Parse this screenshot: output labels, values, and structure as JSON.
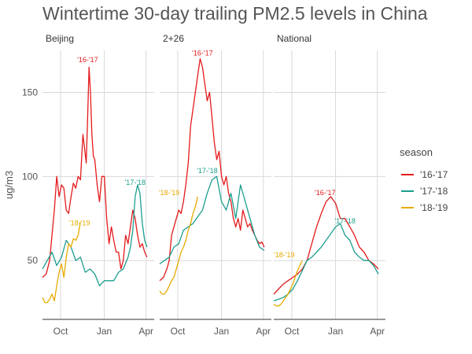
{
  "chart_data": {
    "type": "line",
    "title": "Wintertime 30-day trailing PM2.5 levels in China",
    "ylabel": "ug/m3",
    "xlabel": "",
    "x_ticks": [
      "Oct",
      "Jan",
      "Apr"
    ],
    "y_ticks": [
      50,
      100,
      150
    ],
    "ylim": [
      15,
      175
    ],
    "grid": true,
    "legend": {
      "title": "season",
      "placement": "right",
      "entries": [
        {
          "label": "'16-'17",
          "color": "#e41a1c"
        },
        {
          "label": "'17-'18",
          "color": "#1b9e8e"
        },
        {
          "label": "'18-'19",
          "color": "#e6ab02"
        }
      ]
    },
    "x_unit": "days since Sep 1",
    "panels": [
      {
        "name": "Beijing",
        "series": [
          {
            "name": "'16-'17",
            "color": "#e41a1c",
            "x": [
              0,
              8,
              15,
              20,
              25,
              30,
              35,
              40,
              45,
              50,
              55,
              60,
              65,
              70,
              75,
              80,
              85,
              88,
              92,
              95,
              98,
              101,
              104,
              107,
              110,
              115,
              120,
              125,
              130,
              135,
              140,
              145,
              150,
              155,
              160,
              165,
              170,
              175,
              180,
              185,
              190,
              195,
              200,
              205,
              210,
              215,
              220
            ],
            "y": [
              40,
              42,
              50,
              65,
              80,
              100,
              88,
              95,
              93,
              80,
              78,
              88,
              96,
              93,
              100,
              98,
              125,
              118,
              108,
              135,
              165,
              150,
              125,
              112,
              110,
              95,
              85,
              100,
              100,
              75,
              60,
              70,
              62,
              55,
              55,
              45,
              50,
              65,
              60,
              70,
              80,
              75,
              65,
              58,
              60,
              55,
              52
            ]
          },
          {
            "name": "'17-'18",
            "color": "#1b9e8e",
            "x": [
              0,
              10,
              20,
              30,
              40,
              50,
              60,
              70,
              80,
              90,
              100,
              110,
              120,
              130,
              140,
              150,
              160,
              170,
              180,
              185,
              190,
              195,
              200,
              205,
              210,
              215,
              220
            ],
            "y": [
              45,
              50,
              55,
              47,
              52,
              62,
              58,
              50,
              52,
              43,
              45,
              42,
              35,
              38,
              38,
              38,
              43,
              45,
              52,
              58,
              68,
              88,
              95,
              90,
              72,
              62,
              58
            ]
          },
          {
            "name": "'18-'19",
            "color": "#e6ab02",
            "x": [
              0,
              5,
              10,
              15,
              20,
              25,
              30,
              35,
              40,
              45,
              50,
              55,
              60,
              65,
              70,
              75,
              80
            ],
            "y": [
              28,
              25,
              25,
              27,
              30,
              26,
              35,
              43,
              48,
              40,
              52,
              60,
              58,
              63,
              62,
              65,
              73
            ]
          }
        ],
        "annotations": [
          {
            "text": "'16-'17",
            "x": 95,
            "y": 168,
            "color": "#e41a1c"
          },
          {
            "text": "'17-'18",
            "x": 195,
            "y": 95,
            "color": "#1b9e8e"
          },
          {
            "text": "'18-'19",
            "x": 78,
            "y": 71,
            "color": "#e6ab02"
          }
        ]
      },
      {
        "name": "2+26",
        "series": [
          {
            "name": "'16-'17",
            "color": "#e41a1c",
            "x": [
              0,
              8,
              15,
              20,
              25,
              30,
              35,
              40,
              45,
              50,
              55,
              60,
              65,
              70,
              75,
              80,
              85,
              90,
              95,
              100,
              105,
              110,
              115,
              120,
              125,
              130,
              135,
              140,
              145,
              150,
              155,
              160,
              165,
              170,
              175,
              180,
              185,
              190,
              195,
              200,
              205,
              210,
              215,
              220
            ],
            "y": [
              38,
              40,
              45,
              50,
              65,
              70,
              75,
              80,
              78,
              85,
              95,
              108,
              130,
              140,
              150,
              160,
              170,
              165,
              155,
              145,
              150,
              135,
              120,
              110,
              115,
              100,
              95,
              100,
              90,
              85,
              75,
              70,
              75,
              68,
              80,
              75,
              70,
              72,
              68,
              65,
              62,
              60,
              61,
              58
            ]
          },
          {
            "name": "'17-'18",
            "color": "#1b9e8e",
            "x": [
              0,
              10,
              20,
              30,
              40,
              50,
              60,
              70,
              80,
              90,
              100,
              110,
              120,
              130,
              140,
              150,
              160,
              170,
              180,
              190,
              200,
              210,
              220
            ],
            "y": [
              48,
              50,
              52,
              58,
              60,
              68,
              70,
              72,
              76,
              80,
              90,
              98,
              100,
              85,
              80,
              90,
              75,
              95,
              85,
              75,
              65,
              58,
              56
            ]
          },
          {
            "name": "'18-'19",
            "color": "#e6ab02",
            "x": [
              0,
              5,
              10,
              15,
              20,
              25,
              30,
              35,
              40,
              45,
              50,
              55,
              60,
              65,
              70,
              75,
              80
            ],
            "y": [
              32,
              30,
              30,
              32,
              35,
              38,
              40,
              45,
              50,
              55,
              58,
              62,
              68,
              72,
              78,
              82,
              88
            ]
          }
        ],
        "annotations": [
          {
            "text": "'16-'17",
            "x": 90,
            "y": 172,
            "color": "#e41a1c"
          },
          {
            "text": "'17-'18",
            "x": 100,
            "y": 102,
            "color": "#1b9e8e"
          },
          {
            "text": "'18-'19",
            "x": 20,
            "y": 89,
            "color": "#e6ab02"
          }
        ]
      },
      {
        "name": "National",
        "series": [
          {
            "name": "'16-'17",
            "color": "#e41a1c",
            "x": [
              0,
              10,
              20,
              30,
              40,
              50,
              60,
              70,
              80,
              90,
              100,
              110,
              120,
              130,
              140,
              150,
              160,
              170,
              180,
              190,
              200,
              210,
              220
            ],
            "y": [
              30,
              33,
              36,
              38,
              40,
              42,
              45,
              50,
              60,
              70,
              78,
              85,
              88,
              84,
              75,
              75,
              70,
              65,
              58,
              55,
              50,
              48,
              45
            ]
          },
          {
            "name": "'17-'18",
            "color": "#1b9e8e",
            "x": [
              0,
              10,
              20,
              30,
              40,
              50,
              60,
              70,
              80,
              90,
              100,
              110,
              120,
              130,
              140,
              150,
              160,
              170,
              180,
              190,
              200,
              210,
              220
            ],
            "y": [
              26,
              27,
              28,
              30,
              33,
              38,
              44,
              50,
              52,
              55,
              58,
              62,
              66,
              70,
              72,
              65,
              62,
              55,
              52,
              50,
              50,
              47,
              42
            ]
          },
          {
            "name": "'18-'19",
            "color": "#e6ab02",
            "x": [
              0,
              5,
              10,
              15,
              20,
              25,
              30,
              35,
              40,
              45,
              50,
              55,
              60
            ],
            "y": [
              24,
              23,
              23,
              24,
              26,
              28,
              30,
              33,
              36,
              40,
              44,
              47,
              50
            ]
          }
        ],
        "annotations": [
          {
            "text": "'16-'17",
            "x": 108,
            "y": 89,
            "color": "#e41a1c"
          },
          {
            "text": "'17-'18",
            "x": 150,
            "y": 72,
            "color": "#1b9e8e"
          },
          {
            "text": "'18-'19",
            "x": 22,
            "y": 52,
            "color": "#e6ab02"
          }
        ]
      }
    ]
  }
}
